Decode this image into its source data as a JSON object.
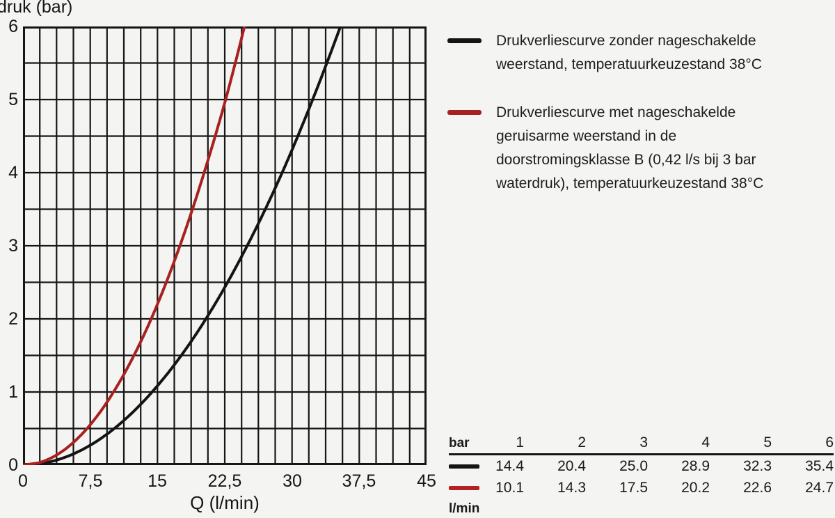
{
  "colors": {
    "background": "#f4f4f2",
    "grid": "#161616",
    "black_curve": "#141414",
    "red_curve": "#a82020",
    "red_table_swatch": "#b32222"
  },
  "chart_data": {
    "type": "line",
    "title": "",
    "xlabel": "Q (l/min)",
    "ylabel": "druk (bar)",
    "xlim": [
      0,
      45
    ],
    "ylim": [
      0,
      6
    ],
    "x_minor_step": 1.875,
    "y_minor_step": 0.5,
    "grid": true,
    "legend_position": "right",
    "x_tick_labels": [
      "0",
      "7,5",
      "15",
      "22,5",
      "30",
      "37,5",
      "45"
    ],
    "y_tick_labels": [
      "6",
      "5",
      "4",
      "3",
      "2",
      "1",
      "0"
    ],
    "series": [
      {
        "name": "Drukverliescurve zonder nageschakelde weerstand, temperatuurkeuzestand 38°C",
        "color": "#141414",
        "bar": [
          0,
          1,
          2,
          3,
          4,
          5,
          6
        ],
        "q_lmin": [
          0,
          14.4,
          20.4,
          25.0,
          28.9,
          32.3,
          35.4
        ]
      },
      {
        "name": "Drukverliescurve met nageschakelde geruisarme weerstand in de doorstromingsklasse B (0,42 l/s bij 3 bar waterdruk), temperatuurkeuzestand 38°C",
        "color": "#a82020",
        "bar": [
          0,
          1,
          2,
          3,
          4,
          5,
          6
        ],
        "q_lmin": [
          0,
          10.1,
          14.3,
          17.5,
          20.2,
          22.6,
          24.7
        ]
      }
    ]
  },
  "axes": {
    "y_title": "druk (bar)",
    "x_title": "Q (l/min)"
  },
  "legend": {
    "items": [
      {
        "swatch": "black-line",
        "lines": [
          "Drukverliescurve zonder nageschakelde",
          "weerstand, temperatuurkeuzestand 38°C"
        ]
      },
      {
        "swatch": "red-line",
        "lines": [
          "Drukverliescurve met nageschakelde",
          "geruisarme weerstand in de",
          "doorstromingsklasse B (0,42 l/s bij 3 bar",
          "waterdruk), temperatuurkeuzestand 38°C"
        ]
      }
    ]
  },
  "table": {
    "unit_header": "bar",
    "pressures": [
      "1",
      "2",
      "3",
      "4",
      "5",
      "6"
    ],
    "rows": [
      {
        "series": "black",
        "values": [
          "14.4",
          "20.4",
          "25.0",
          "28.9",
          "32.3",
          "35.4"
        ]
      },
      {
        "series": "red",
        "values": [
          "10.1",
          "14.3",
          "17.5",
          "20.2",
          "22.6",
          "24.7"
        ]
      }
    ],
    "footer_unit": "l/min"
  }
}
